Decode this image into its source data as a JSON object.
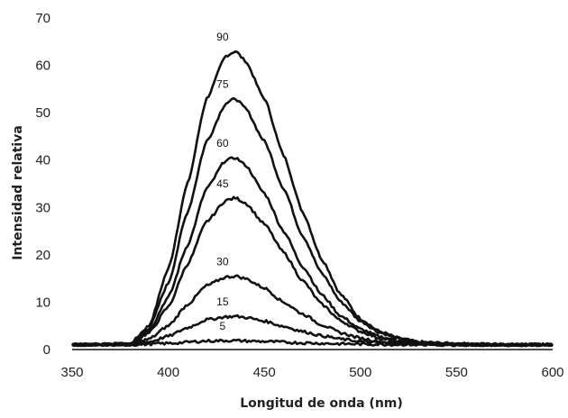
{
  "chart_data": {
    "type": "line",
    "title": "",
    "xlabel": "Longitud de onda (nm)",
    "ylabel": "Intensidad relativa",
    "xlim": [
      350,
      600
    ],
    "ylim": [
      0,
      70
    ],
    "xticks": [
      "350",
      "400",
      "450",
      "500",
      "550",
      "600"
    ],
    "yticks": [
      "0",
      "10",
      "20",
      "30",
      "40",
      "50",
      "60",
      "70"
    ],
    "grid": false,
    "legend": "none",
    "line_color": "#111111",
    "baseline": 1.0,
    "series": [
      {
        "name": "90",
        "peak_x": 432,
        "peak_y": 63,
        "points": [
          [
            350,
            1.0
          ],
          [
            380,
            1.2
          ],
          [
            390,
            5
          ],
          [
            400,
            17
          ],
          [
            410,
            35
          ],
          [
            420,
            53
          ],
          [
            430,
            62
          ],
          [
            435,
            63
          ],
          [
            440,
            61
          ],
          [
            450,
            53
          ],
          [
            460,
            41
          ],
          [
            470,
            29
          ],
          [
            480,
            19
          ],
          [
            490,
            11.5
          ],
          [
            500,
            6.5
          ],
          [
            510,
            3.8
          ],
          [
            520,
            2.4
          ],
          [
            530,
            1.6
          ],
          [
            550,
            1.2
          ],
          [
            600,
            1.0
          ]
        ]
      },
      {
        "name": "75",
        "peak_x": 432,
        "peak_y": 53,
        "points": [
          [
            350,
            1.0
          ],
          [
            380,
            1.2
          ],
          [
            390,
            4.5
          ],
          [
            400,
            14
          ],
          [
            410,
            29
          ],
          [
            420,
            44
          ],
          [
            430,
            52
          ],
          [
            435,
            53
          ],
          [
            440,
            51
          ],
          [
            450,
            44
          ],
          [
            460,
            34
          ],
          [
            470,
            24
          ],
          [
            480,
            16
          ],
          [
            490,
            10
          ],
          [
            500,
            6
          ],
          [
            510,
            3.6
          ],
          [
            520,
            2.2
          ],
          [
            530,
            1.5
          ],
          [
            550,
            1.1
          ],
          [
            600,
            1.0
          ]
        ]
      },
      {
        "name": "60",
        "peak_x": 432,
        "peak_y": 40.5,
        "points": [
          [
            350,
            1.0
          ],
          [
            380,
            1.1
          ],
          [
            390,
            4
          ],
          [
            400,
            11
          ],
          [
            410,
            22
          ],
          [
            420,
            34
          ],
          [
            430,
            40
          ],
          [
            435,
            40.5
          ],
          [
            440,
            39
          ],
          [
            450,
            33
          ],
          [
            460,
            25
          ],
          [
            470,
            17.5
          ],
          [
            480,
            11.5
          ],
          [
            490,
            7
          ],
          [
            500,
            4.3
          ],
          [
            510,
            2.7
          ],
          [
            520,
            1.8
          ],
          [
            530,
            1.3
          ],
          [
            550,
            1.1
          ],
          [
            600,
            1.0
          ]
        ]
      },
      {
        "name": "45",
        "peak_x": 432,
        "peak_y": 32,
        "points": [
          [
            350,
            1.0
          ],
          [
            380,
            1.1
          ],
          [
            390,
            3.5
          ],
          [
            400,
            9
          ],
          [
            410,
            18
          ],
          [
            420,
            27
          ],
          [
            430,
            31.5
          ],
          [
            435,
            32
          ],
          [
            440,
            31
          ],
          [
            450,
            26.5
          ],
          [
            460,
            20.5
          ],
          [
            470,
            14.5
          ],
          [
            480,
            9.5
          ],
          [
            490,
            6
          ],
          [
            500,
            3.8
          ],
          [
            510,
            2.4
          ],
          [
            520,
            1.6
          ],
          [
            530,
            1.2
          ],
          [
            550,
            1.1
          ],
          [
            600,
            1.0
          ]
        ]
      },
      {
        "name": "30",
        "peak_x": 432,
        "peak_y": 15.5,
        "points": [
          [
            350,
            1.0
          ],
          [
            380,
            1.1
          ],
          [
            390,
            2.2
          ],
          [
            400,
            5
          ],
          [
            410,
            9.5
          ],
          [
            420,
            13.5
          ],
          [
            430,
            15.3
          ],
          [
            435,
            15.5
          ],
          [
            440,
            15
          ],
          [
            450,
            13
          ],
          [
            460,
            10
          ],
          [
            470,
            7.5
          ],
          [
            480,
            5.2
          ],
          [
            490,
            3.5
          ],
          [
            500,
            2.4
          ],
          [
            510,
            1.7
          ],
          [
            520,
            1.3
          ],
          [
            530,
            1.1
          ],
          [
            550,
            1.0
          ],
          [
            600,
            1.0
          ]
        ]
      },
      {
        "name": "15",
        "peak_x": 432,
        "peak_y": 7,
        "points": [
          [
            350,
            1.0
          ],
          [
            380,
            1.0
          ],
          [
            390,
            1.6
          ],
          [
            400,
            2.8
          ],
          [
            410,
            4.6
          ],
          [
            420,
            6.3
          ],
          [
            430,
            6.9
          ],
          [
            435,
            7
          ],
          [
            440,
            6.8
          ],
          [
            450,
            6
          ],
          [
            460,
            4.9
          ],
          [
            470,
            3.8
          ],
          [
            480,
            2.9
          ],
          [
            490,
            2.2
          ],
          [
            500,
            1.7
          ],
          [
            510,
            1.4
          ],
          [
            520,
            1.2
          ],
          [
            530,
            1.1
          ],
          [
            550,
            1.0
          ],
          [
            600,
            1.0
          ]
        ]
      },
      {
        "name": "5",
        "peak_x": 432,
        "peak_y": 1.9,
        "points": [
          [
            350,
            1.0
          ],
          [
            380,
            1.0
          ],
          [
            400,
            1.3
          ],
          [
            420,
            1.8
          ],
          [
            432,
            1.9
          ],
          [
            450,
            1.7
          ],
          [
            470,
            1.4
          ],
          [
            490,
            1.2
          ],
          [
            510,
            1.1
          ],
          [
            550,
            1.0
          ],
          [
            600,
            1.0
          ]
        ]
      }
    ]
  }
}
